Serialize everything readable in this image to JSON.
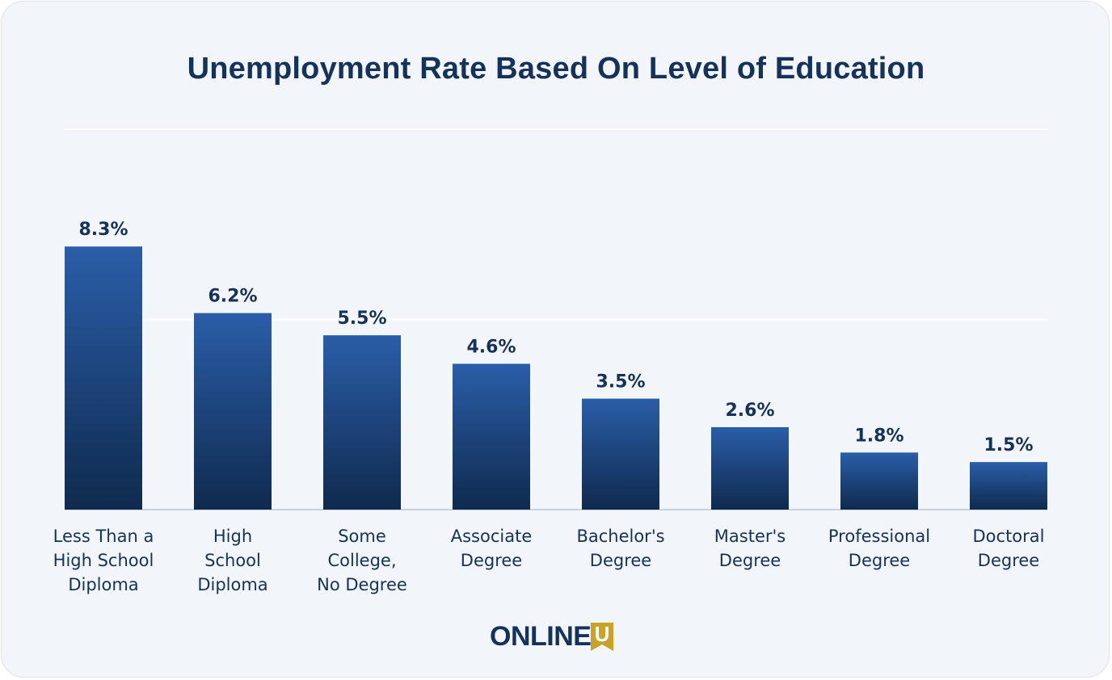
{
  "title": "Unemployment Rate Based On Level of Education",
  "logo": {
    "text": "ONLINE",
    "mark_text": "U",
    "text_color": "#14325a",
    "mark_color": "#c9a227"
  },
  "colors": {
    "bar_top": "#2a5ea8",
    "bar_bottom": "#0f2a4e",
    "text": "#14325a",
    "grid": "#ffffff",
    "baseline": "#b9c6d6"
  },
  "chart_data": {
    "type": "bar",
    "title": "Unemployment Rate Based On Level of Education",
    "xlabel": "",
    "ylabel": "",
    "ylim": [
      0,
      12
    ],
    "grid": true,
    "categories": [
      [
        "Less Than a",
        "High School",
        "Diploma"
      ],
      [
        "High",
        "School",
        "Diploma"
      ],
      [
        "Some",
        "College,",
        "No Degree"
      ],
      [
        "Associate",
        "Degree"
      ],
      [
        "Bachelor's",
        "Degree"
      ],
      [
        "Master's",
        "Degree"
      ],
      [
        "Professional",
        "Degree"
      ],
      [
        "Doctoral",
        "Degree"
      ]
    ],
    "values": [
      8.3,
      6.2,
      5.5,
      4.6,
      3.5,
      2.6,
      1.8,
      1.5
    ],
    "value_labels": [
      "8.3%",
      "6.2%",
      "5.5%",
      "4.6%",
      "3.5%",
      "2.6%",
      "1.8%",
      "1.5%"
    ]
  }
}
